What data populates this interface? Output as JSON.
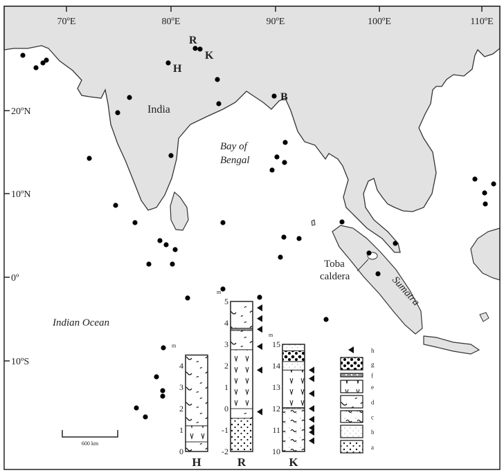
{
  "map": {
    "longitude_labels": [
      "70ºE",
      "80ºE",
      "90ºE",
      "100ºE",
      "110ºE"
    ],
    "latitude_labels": [
      "20ºN",
      "10ºN",
      "0º",
      "10ºS"
    ],
    "place_labels": {
      "india": "India",
      "bay_line1": "Bay of",
      "bay_line2": "Bengal",
      "indian_ocean": "Indian Ocean",
      "toba_line1": "Toba",
      "toba_line2": "caldera",
      "sumatra": "Sumatra"
    },
    "site_labels": {
      "R": "R",
      "K": "K",
      "H": "H",
      "B": "B"
    },
    "scale_bar": "600 km",
    "colors": {
      "land": "#e2e2e2",
      "sea": "#ffffff",
      "coast": "#333333",
      "marker": "#000000"
    }
  },
  "columns": [
    {
      "name": "H",
      "unit": "m",
      "range": [
        0,
        4.5
      ],
      "ticks": [
        "0",
        "1",
        "2",
        "3",
        "4"
      ],
      "tick_values": [
        0,
        1,
        2,
        3,
        4
      ],
      "layers": [
        {
          "from": 0,
          "to": 0.45,
          "type": "d"
        },
        {
          "from": 0.45,
          "to": 1.2,
          "type": "e"
        },
        {
          "from": 1.2,
          "to": 4.5,
          "type": "d"
        }
      ],
      "arrows": []
    },
    {
      "name": "R",
      "unit": "m",
      "range": [
        -2,
        5
      ],
      "ticks": [
        "-2",
        "-1",
        "0",
        "1",
        "2",
        "3",
        "4",
        "5"
      ],
      "tick_values": [
        -2,
        -1,
        0,
        1,
        2,
        3,
        4,
        5
      ],
      "layers": [
        {
          "from": -2,
          "to": -0.45,
          "type": "a"
        },
        {
          "from": -0.45,
          "to": 0,
          "type": "d"
        },
        {
          "from": 0,
          "to": 2.75,
          "type": "e"
        },
        {
          "from": 2.75,
          "to": 3.65,
          "type": "d"
        },
        {
          "from": 3.65,
          "to": 3.75,
          "type": "f"
        },
        {
          "from": 3.75,
          "to": 5,
          "type": "d"
        }
      ],
      "arrows": [
        4.7,
        4.2,
        3.7,
        2.9,
        1.8,
        -0.15
      ]
    },
    {
      "name": "K",
      "unit": "m",
      "range": [
        10,
        15
      ],
      "ticks": [
        "10",
        "11",
        "12",
        "13",
        "14",
        "15"
      ],
      "tick_values": [
        10,
        11,
        12,
        13,
        14,
        15
      ],
      "layers": [
        {
          "from": 10,
          "to": 12,
          "type": "c"
        },
        {
          "from": 12,
          "to": 12.05,
          "type": "f"
        },
        {
          "from": 12.05,
          "to": 13.8,
          "type": "e"
        },
        {
          "from": 13.8,
          "to": 14.2,
          "type": "b"
        },
        {
          "from": 14.2,
          "to": 14.7,
          "type": "g"
        },
        {
          "from": 14.7,
          "to": 15,
          "type": "b"
        }
      ],
      "arrows": [
        13.8,
        13.4,
        12.7,
        12,
        11.5,
        11.1,
        10.9,
        10.5
      ]
    }
  ],
  "legend": {
    "items": [
      {
        "key": "h",
        "symbol": "arrow"
      },
      {
        "key": "g",
        "symbol": "g"
      },
      {
        "key": "f",
        "symbol": "f"
      },
      {
        "key": "e",
        "symbol": "e"
      },
      {
        "key": "d",
        "symbol": "d"
      },
      {
        "key": "c",
        "symbol": "c"
      },
      {
        "key": "b",
        "symbol": "b"
      },
      {
        "key": "a",
        "symbol": "a"
      }
    ]
  }
}
